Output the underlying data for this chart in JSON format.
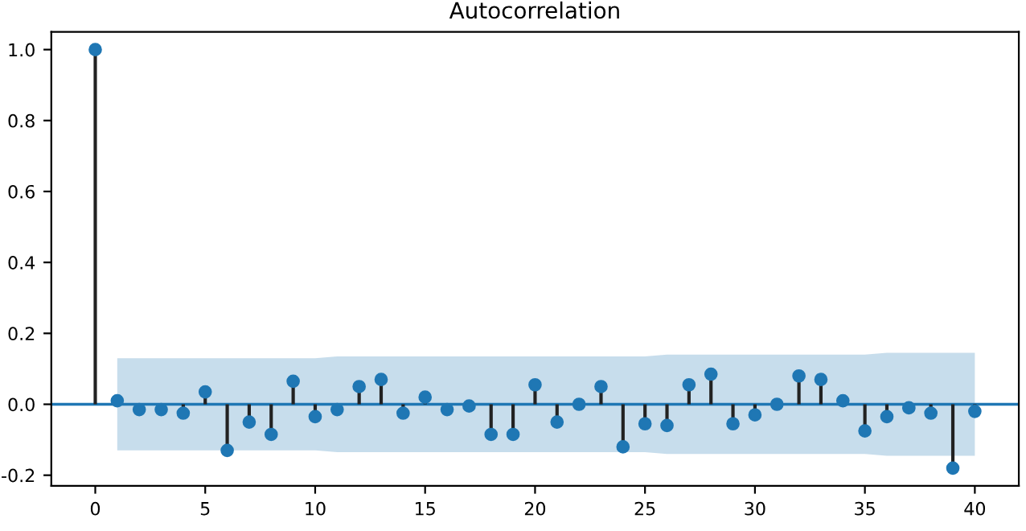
{
  "chart_data": {
    "type": "lollipop",
    "title": "Autocorrelation",
    "x": [
      0,
      1,
      2,
      3,
      4,
      5,
      6,
      7,
      8,
      9,
      10,
      11,
      12,
      13,
      14,
      15,
      16,
      17,
      18,
      19,
      20,
      21,
      22,
      23,
      24,
      25,
      26,
      27,
      28,
      29,
      30,
      31,
      32,
      33,
      34,
      35,
      36,
      37,
      38,
      39,
      40
    ],
    "series": [
      {
        "color": "#1f77b4",
        "values": [
          1.0,
          0.01,
          -0.015,
          -0.015,
          -0.025,
          0.035,
          -0.13,
          -0.05,
          -0.085,
          0.065,
          -0.035,
          -0.015,
          0.05,
          0.07,
          -0.025,
          0.02,
          -0.015,
          -0.005,
          -0.085,
          -0.085,
          0.055,
          -0.05,
          0.0,
          0.05,
          -0.12,
          -0.055,
          -0.06,
          0.055,
          0.085,
          -0.055,
          -0.03,
          0.0,
          0.08,
          0.07,
          0.01,
          -0.075,
          -0.035,
          -0.01,
          -0.025,
          -0.18,
          -0.02
        ],
        "upper": [
          null,
          0.13,
          0.13,
          0.13,
          0.13,
          0.13,
          0.13,
          0.13,
          0.13,
          0.13,
          0.13,
          0.135,
          0.135,
          0.135,
          0.135,
          0.135,
          0.135,
          0.135,
          0.135,
          0.135,
          0.135,
          0.135,
          0.135,
          0.135,
          0.135,
          0.135,
          0.14,
          0.14,
          0.14,
          0.14,
          0.14,
          0.14,
          0.14,
          0.14,
          0.14,
          0.14,
          0.145,
          0.145,
          0.145,
          0.145,
          0.145
        ],
        "lower": [
          null,
          -0.13,
          -0.13,
          -0.13,
          -0.13,
          -0.13,
          -0.13,
          -0.13,
          -0.13,
          -0.13,
          -0.13,
          -0.135,
          -0.135,
          -0.135,
          -0.135,
          -0.135,
          -0.135,
          -0.135,
          -0.135,
          -0.135,
          -0.135,
          -0.135,
          -0.135,
          -0.135,
          -0.135,
          -0.135,
          -0.14,
          -0.14,
          -0.14,
          -0.14,
          -0.14,
          -0.14,
          -0.14,
          -0.14,
          -0.14,
          -0.14,
          -0.145,
          -0.145,
          -0.145,
          -0.145,
          -0.145
        ]
      }
    ],
    "ref_lines": [
      {
        "axis": "y",
        "value": 0,
        "color": "#1f77b4"
      }
    ],
    "xlim": [
      -2,
      42
    ],
    "xticks": [
      0,
      5,
      10,
      15,
      20,
      25,
      30,
      35,
      40
    ],
    "ylim": [
      -0.23,
      1.05
    ],
    "yticks": [
      -0.2,
      {
        "value": 0,
        "label": "0.0"
      },
      0.2,
      0.4,
      0.6,
      0.8,
      {
        "value": 1,
        "label": "1.0"
      }
    ],
    "marker": "circle",
    "grid": false,
    "legend": false
  }
}
